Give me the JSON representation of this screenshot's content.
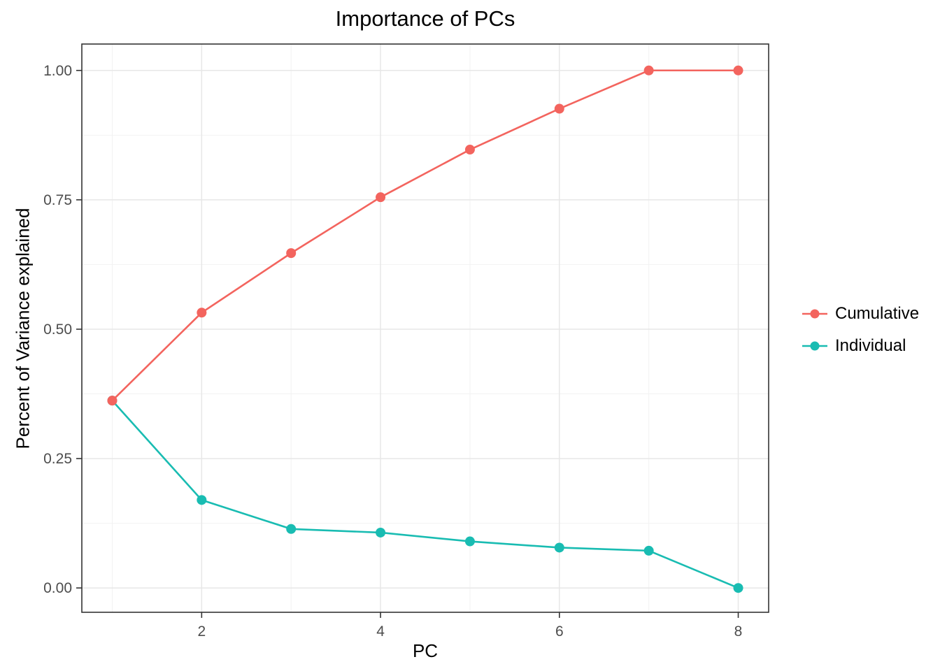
{
  "chart_data": {
    "type": "line",
    "title": "Importance of PCs",
    "xlabel": "PC",
    "ylabel": "Percent of Variance explained",
    "x": [
      1,
      2,
      3,
      4,
      5,
      6,
      7,
      8
    ],
    "series": [
      {
        "name": "Cumulative",
        "color": "#F3645E",
        "values": [
          0.362,
          0.532,
          0.647,
          0.755,
          0.847,
          0.926,
          1.0,
          1.0
        ]
      },
      {
        "name": "Individual",
        "color": "#19BCB2",
        "values": [
          0.362,
          0.17,
          0.114,
          0.107,
          0.09,
          0.078,
          0.072,
          0.0
        ]
      }
    ],
    "xlim": [
      0.66,
      8.34
    ],
    "ylim": [
      -0.047,
      1.051
    ],
    "x_ticks": {
      "values": [
        2,
        4,
        6,
        8
      ],
      "labels": [
        "2",
        "4",
        "6",
        "8"
      ]
    },
    "x_minor": [
      1,
      3,
      5,
      7
    ],
    "y_ticks": {
      "values": [
        0,
        0.25,
        0.5,
        0.75,
        1.0
      ],
      "labels": [
        "0.00",
        "0.25",
        "0.50",
        "0.75",
        "1.00"
      ]
    },
    "y_minor": [
      0.125,
      0.375,
      0.625,
      0.875
    ],
    "grid": true,
    "legend_position": "right",
    "colors": {
      "grid_major": "#E7E7E7",
      "grid_minor": "#F2F2F2",
      "panel_border": "#333333",
      "tick": "#333333",
      "tick_label": "#4D4D4D",
      "text": "#000000",
      "background": "#FFFFFF"
    }
  }
}
